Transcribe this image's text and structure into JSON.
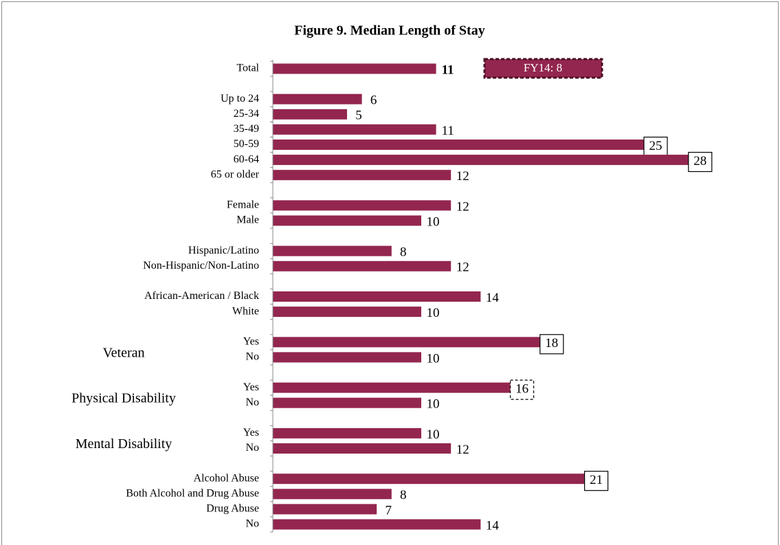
{
  "chart_data": {
    "type": "bar",
    "orientation": "horizontal",
    "title": "Figure 9.  Median Length of Stay",
    "color": "#93264f",
    "annotation": "FY14: 8",
    "groups": [
      {
        "categories": [
          "Total"
        ],
        "values": [
          11
        ],
        "bold": true
      },
      {
        "categories": [
          "Up to 24",
          "25-34",
          "35-49",
          "50-59",
          "60-64",
          "65 or older"
        ],
        "values": [
          6,
          5,
          11,
          25,
          28,
          12
        ],
        "box": [
          null,
          null,
          null,
          "solid",
          "solid",
          null
        ]
      },
      {
        "categories": [
          "Female",
          "Male"
        ],
        "values": [
          12,
          10
        ]
      },
      {
        "categories": [
          "Hispanic/Latino",
          "Non-Hispanic/Non-Latino"
        ],
        "values": [
          8,
          12
        ]
      },
      {
        "categories": [
          "African-American / Black",
          "White"
        ],
        "values": [
          14,
          10
        ]
      },
      {
        "label": "Veteran",
        "categories": [
          "Yes",
          "No"
        ],
        "values": [
          18,
          10
        ],
        "box": [
          "solid",
          null
        ]
      },
      {
        "label": "Physical Disability",
        "categories": [
          "Yes",
          "No"
        ],
        "values": [
          16,
          10
        ],
        "box": [
          "dashed",
          null
        ]
      },
      {
        "label": "Mental Disability",
        "categories": [
          "Yes",
          "No"
        ],
        "values": [
          10,
          12
        ]
      },
      {
        "categories": [
          "Alcohol Abuse",
          "Both Alcohol and Drug Abuse",
          "Drug Abuse",
          "No"
        ],
        "values": [
          21,
          8,
          7,
          14
        ],
        "box": [
          "solid",
          null,
          null,
          null
        ]
      }
    ]
  }
}
